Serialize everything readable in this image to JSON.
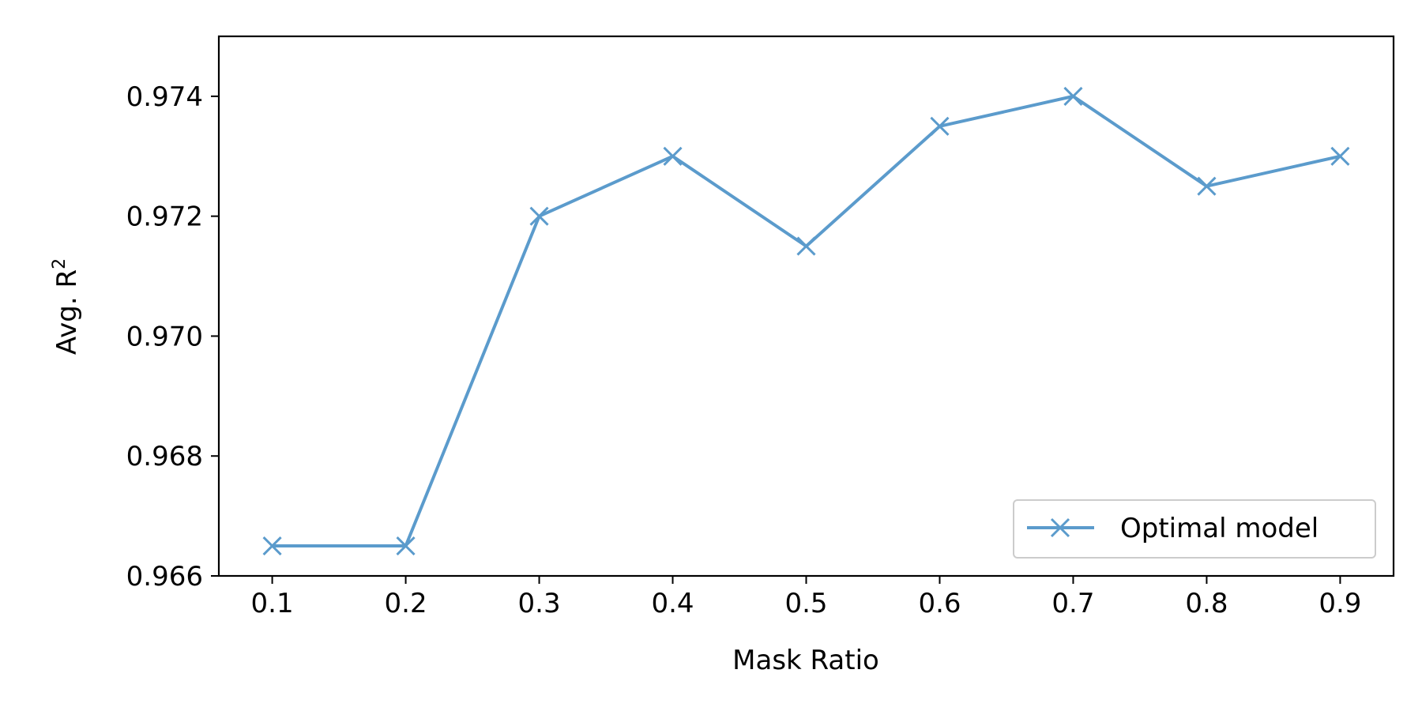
{
  "chart_data": {
    "type": "line",
    "title": "",
    "xlabel": "Mask Ratio",
    "ylabel_main": "Avg. R",
    "ylabel_sup": "2",
    "x": [
      0.1,
      0.2,
      0.3,
      0.4,
      0.5,
      0.6,
      0.7,
      0.8,
      0.9
    ],
    "x_tick_labels": [
      "0.1",
      "0.2",
      "0.3",
      "0.4",
      "0.5",
      "0.6",
      "0.7",
      "0.8",
      "0.9"
    ],
    "y_ticks": [
      0.966,
      0.968,
      0.97,
      0.972,
      0.974
    ],
    "y_tick_labels": [
      "0.966",
      "0.968",
      "0.970",
      "0.972",
      "0.974"
    ],
    "xlim": [
      0.06,
      0.94
    ],
    "ylim": [
      0.966,
      0.975
    ],
    "grid": false,
    "legend_position": "lower-right",
    "series": [
      {
        "name": "Optimal model",
        "marker": "x",
        "color": "#5b9bcc",
        "values": [
          0.9665,
          0.9665,
          0.972,
          0.973,
          0.9715,
          0.9735,
          0.974,
          0.9725,
          0.973
        ]
      }
    ]
  }
}
